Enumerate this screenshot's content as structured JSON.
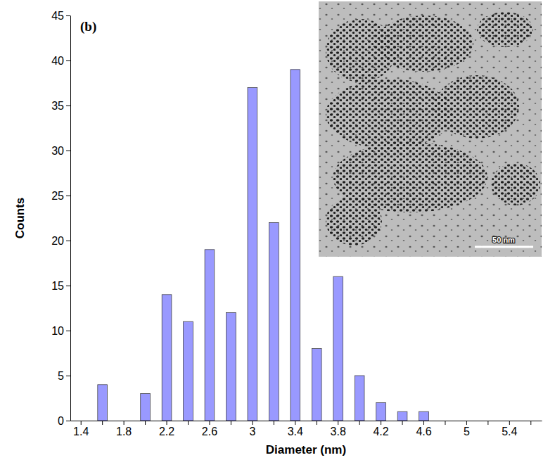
{
  "chart_data": {
    "type": "bar",
    "categories": [
      "1.4",
      null,
      "1.8",
      null,
      "2.2",
      null,
      "2.6",
      null,
      "3",
      null,
      "3.4",
      null,
      "3.8",
      null,
      "4.2",
      null,
      "4.6",
      null,
      "5",
      null,
      "5.4",
      null
    ],
    "values": [
      0,
      4,
      0,
      3,
      14,
      11,
      19,
      12,
      37,
      22,
      39,
      8,
      16,
      5,
      2,
      1,
      1,
      0,
      0,
      0,
      0,
      0
    ],
    "color": "#9999ff",
    "x_label": "Diameter (nm)",
    "y_label": "Counts",
    "annotations": [
      "(b)",
      "50 nm"
    ],
    "ylim": [
      0,
      45
    ],
    "yticks": [
      0,
      5,
      10,
      15,
      20,
      25,
      30,
      35,
      40,
      45
    ],
    "grid": false
  }
}
